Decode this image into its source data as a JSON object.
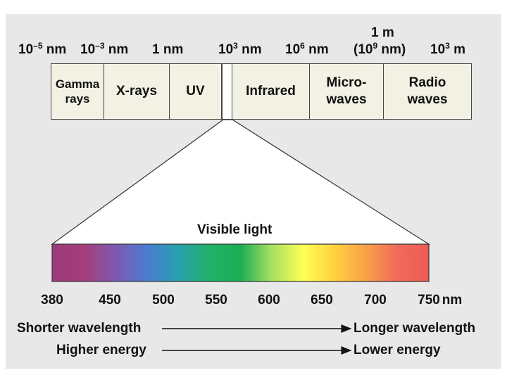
{
  "scale_labels": {
    "nm_neg5_base": "10",
    "nm_neg5_exp": "–5",
    "nm_neg5_unit": " nm",
    "nm_neg3_base": "10",
    "nm_neg3_exp": "–3",
    "nm_neg3_unit": " nm",
    "one_nm": "1 nm",
    "nm_3_base": "10",
    "nm_3_exp": "3",
    "nm_3_unit": " nm",
    "nm_6_base": "10",
    "nm_6_exp": "6",
    "nm_6_unit": " nm",
    "one_m": "1 m",
    "nm_9_open": "(10",
    "nm_9_exp": "9",
    "nm_9_close": " nm)",
    "m_3_base": "10",
    "m_3_exp": "3",
    "m_3_unit": " m"
  },
  "bands": {
    "gamma_line1": "Gamma",
    "gamma_line2": "rays",
    "xrays": "X-rays",
    "uv": "UV",
    "infrared": "Infrared",
    "micro_line1": "Micro-",
    "micro_line2": "waves",
    "radio_line1": "Radio",
    "radio_line2": "waves"
  },
  "visible": {
    "title": "Visible light",
    "ticks": [
      "380",
      "450",
      "500",
      "550",
      "600",
      "650",
      "700",
      "750"
    ],
    "unit": "nm",
    "colors": [
      "#9b3b7c",
      "#a53d7a",
      "#7f58b0",
      "#4a7bd0",
      "#2a9fb0",
      "#22b06a",
      "#1aae55",
      "#a8e060",
      "#ffff55",
      "#ffd040",
      "#f8a048",
      "#f06a5a",
      "#ee5a55"
    ]
  },
  "arrows": {
    "shorter": "Shorter wavelength",
    "longer": "Longer wavelength",
    "higher": "Higher energy",
    "lower": "Lower energy"
  }
}
